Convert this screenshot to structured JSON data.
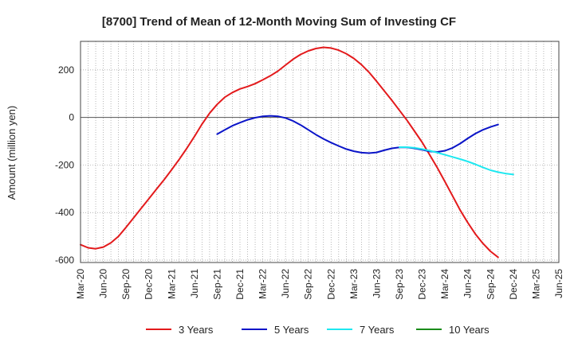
{
  "chart_data": {
    "type": "line",
    "title": "[8700]  Trend of Mean of 12-Month Moving Sum of Investing CF",
    "xlabel": "",
    "ylabel": "Amount (million yen)",
    "ylim": [
      -610,
      320
    ],
    "yticks": [
      200,
      0,
      -200,
      -400,
      -600
    ],
    "ytick_labels": [
      "200",
      "0",
      "-200",
      "-400",
      "-600"
    ],
    "xticks": [
      "Mar-20",
      "Jun-20",
      "Sep-20",
      "Dec-20",
      "Mar-21",
      "Jun-21",
      "Sep-21",
      "Dec-21",
      "Mar-22",
      "Jun-22",
      "Sep-22",
      "Dec-22",
      "Mar-23",
      "Jun-23",
      "Sep-23",
      "Dec-23",
      "Mar-24",
      "Jun-24",
      "Sep-24",
      "Dec-24",
      "Mar-25",
      "Jun-25"
    ],
    "grid": true,
    "legend_position": "bottom",
    "series": [
      {
        "name": "3 Years",
        "color": "#e31a1c",
        "start_index": 0,
        "values": [
          -535,
          -548,
          -552,
          -545,
          -527,
          -500,
          -462,
          -422,
          -382,
          -342,
          -302,
          -262,
          -220,
          -176,
          -130,
          -80,
          -28,
          18,
          55,
          85,
          105,
          120,
          130,
          142,
          158,
          175,
          195,
          220,
          245,
          265,
          280,
          290,
          295,
          292,
          283,
          268,
          248,
          222,
          190,
          152,
          112,
          72,
          30,
          -12,
          -58,
          -105,
          -158,
          -212,
          -270,
          -330,
          -390,
          -442,
          -490,
          -530,
          -563,
          -588
        ]
      },
      {
        "name": "5 Years",
        "color": "#0a14c8",
        "start_index": 18,
        "values": [
          -70,
          -52,
          -35,
          -22,
          -10,
          -1,
          5,
          7,
          5,
          -2,
          -15,
          -32,
          -52,
          -72,
          -90,
          -106,
          -120,
          -133,
          -142,
          -148,
          -150,
          -147,
          -138,
          -130,
          -126,
          -126,
          -130,
          -136,
          -143,
          -145,
          -140,
          -128,
          -110,
          -88,
          -68,
          -52,
          -40,
          -30
        ]
      },
      {
        "name": "7 Years",
        "color": "#1ee8f0",
        "start_index": 42,
        "values": [
          -125,
          -125,
          -128,
          -133,
          -140,
          -148,
          -157,
          -166,
          -175,
          -185,
          -197,
          -210,
          -222,
          -230,
          -236,
          -240
        ]
      },
      {
        "name": "10 Years",
        "color": "#1a8c1a",
        "start_index": 0,
        "values": []
      }
    ]
  }
}
